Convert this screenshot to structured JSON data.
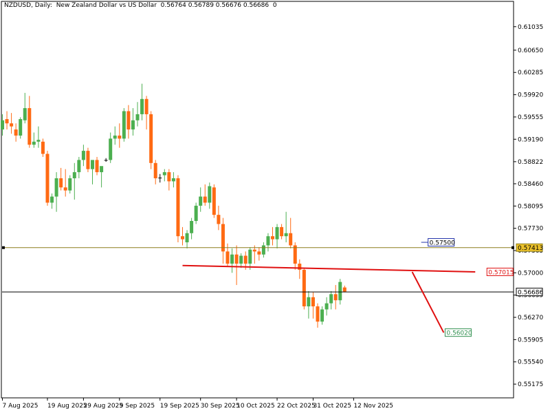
{
  "header": {
    "symbol": "NZDUSD",
    "timeframe": "Daily",
    "description": "New Zealand Dollar vs US Dollar",
    "ohlc": "0.56764 0.56789 0.56676 0.56686",
    "volume": "0"
  },
  "colors": {
    "bull": "#4caf50",
    "bear": "#ff6a13",
    "doji": "#000000",
    "trend": "#e01010",
    "horizontal_line": "#8b7d1a",
    "bid_line": "#000000",
    "label_green": "#2f8f4e"
  },
  "chart_data": {
    "type": "candlestick",
    "symbol": "NZDUSD",
    "timeframe": "Daily",
    "ylim": [
      0.5495,
      0.6145
    ],
    "y_ticks": [
      "0.61035",
      "0.60650",
      "0.60285",
      "0.59920",
      "0.59555",
      "0.59190",
      "0.58822",
      "0.58460",
      "0.58095",
      "0.57730",
      "0.57365",
      "0.57000",
      "0.56635",
      "0.56270",
      "0.55905",
      "0.55540",
      "0.55175"
    ],
    "x_labels": [
      "7 Aug 2025",
      "19 Aug 2025",
      "29 Aug 2025",
      "9 Sep 2025",
      "19 Sep 2025",
      "30 Sep 2025",
      "10 Oct 2025",
      "22 Oct 2025",
      "31 Oct 2025",
      "12 Nov 2025"
    ],
    "x_label_index": [
      0,
      10,
      18,
      26,
      35,
      44,
      52,
      61,
      69,
      78
    ],
    "candles": [
      [
        0.5935,
        0.596,
        0.5925,
        0.595
      ],
      [
        0.5952,
        0.5965,
        0.5935,
        0.5945
      ],
      [
        0.5945,
        0.5962,
        0.5928,
        0.594
      ],
      [
        0.5935,
        0.5945,
        0.5915,
        0.5925
      ],
      [
        0.5925,
        0.5955,
        0.592,
        0.5952
      ],
      [
        0.595,
        0.5995,
        0.5945,
        0.597
      ],
      [
        0.597,
        0.599,
        0.5905,
        0.591
      ],
      [
        0.591,
        0.593,
        0.5905,
        0.5915
      ],
      [
        0.5915,
        0.594,
        0.5905,
        0.5918
      ],
      [
        0.5915,
        0.592,
        0.589,
        0.5895
      ],
      [
        0.5895,
        0.59,
        0.581,
        0.5815
      ],
      [
        0.5815,
        0.583,
        0.5805,
        0.5825
      ],
      [
        0.5825,
        0.5865,
        0.58,
        0.5855
      ],
      [
        0.5855,
        0.5872,
        0.5835,
        0.584
      ],
      [
        0.584,
        0.587,
        0.5825,
        0.5835
      ],
      [
        0.5835,
        0.586,
        0.583,
        0.5855
      ],
      [
        0.5855,
        0.588,
        0.582,
        0.5865
      ],
      [
        0.5865,
        0.589,
        0.5855,
        0.5885
      ],
      [
        0.5885,
        0.591,
        0.5875,
        0.59
      ],
      [
        0.59,
        0.5905,
        0.5865,
        0.587
      ],
      [
        0.587,
        0.588,
        0.5845,
        0.5885
      ],
      [
        0.5885,
        0.589,
        0.586,
        0.5865
      ],
      [
        0.5865,
        0.587,
        0.584,
        0.5875
      ],
      [
        0.5885,
        0.5888,
        0.5882,
        0.5885
      ],
      [
        0.5885,
        0.593,
        0.588,
        0.592
      ],
      [
        0.592,
        0.594,
        0.591,
        0.5925
      ],
      [
        0.5925,
        0.5945,
        0.5905,
        0.592
      ],
      [
        0.592,
        0.597,
        0.5915,
        0.5965
      ],
      [
        0.5965,
        0.5975,
        0.592,
        0.5935
      ],
      [
        0.5935,
        0.597,
        0.5925,
        0.595
      ],
      [
        0.595,
        0.598,
        0.594,
        0.596
      ],
      [
        0.596,
        0.601,
        0.595,
        0.5985
      ],
      [
        0.5985,
        0.599,
        0.5935,
        0.596
      ],
      [
        0.596,
        0.5965,
        0.587,
        0.588
      ],
      [
        0.588,
        0.5885,
        0.5845,
        0.5855
      ],
      [
        0.5855,
        0.5862,
        0.5848,
        0.5856
      ],
      [
        0.586,
        0.587,
        0.585,
        0.5865
      ],
      [
        0.5865,
        0.587,
        0.5835,
        0.585
      ],
      [
        0.585,
        0.5865,
        0.584,
        0.5855
      ],
      [
        0.5855,
        0.586,
        0.575,
        0.576
      ],
      [
        0.576,
        0.5775,
        0.5745,
        0.5755
      ],
      [
        0.575,
        0.577,
        0.574,
        0.5765
      ],
      [
        0.5765,
        0.579,
        0.5755,
        0.5785
      ],
      [
        0.5785,
        0.5815,
        0.578,
        0.581
      ],
      [
        0.581,
        0.584,
        0.58,
        0.5825
      ],
      [
        0.5825,
        0.5845,
        0.581,
        0.5815
      ],
      [
        0.5815,
        0.5848,
        0.5805,
        0.5842
      ],
      [
        0.584,
        0.5845,
        0.579,
        0.5795
      ],
      [
        0.5795,
        0.581,
        0.577,
        0.578
      ],
      [
        0.578,
        0.579,
        0.5715,
        0.5735
      ],
      [
        0.5735,
        0.5748,
        0.571,
        0.5715
      ],
      [
        0.5715,
        0.574,
        0.57,
        0.573
      ],
      [
        0.573,
        0.5745,
        0.568,
        0.5715
      ],
      [
        0.5715,
        0.5732,
        0.5708,
        0.5728
      ],
      [
        0.5728,
        0.5735,
        0.5705,
        0.5715
      ],
      [
        0.5715,
        0.5742,
        0.5705,
        0.5738
      ],
      [
        0.5738,
        0.5745,
        0.5715,
        0.5735
      ],
      [
        0.5735,
        0.5742,
        0.572,
        0.573
      ],
      [
        0.573,
        0.575,
        0.5725,
        0.5745
      ],
      [
        0.5745,
        0.5765,
        0.5735,
        0.576
      ],
      [
        0.576,
        0.5775,
        0.5745,
        0.5755
      ],
      [
        0.5755,
        0.578,
        0.574,
        0.5775
      ],
      [
        0.5775,
        0.578,
        0.5755,
        0.576
      ],
      [
        0.576,
        0.58,
        0.575,
        0.5765
      ],
      [
        0.5765,
        0.579,
        0.574,
        0.5745
      ],
      [
        0.5745,
        0.575,
        0.5705,
        0.5715
      ],
      [
        0.5715,
        0.5722,
        0.569,
        0.5705
      ],
      [
        0.5705,
        0.5708,
        0.564,
        0.5645
      ],
      [
        0.5645,
        0.567,
        0.5625,
        0.566
      ],
      [
        0.566,
        0.5668,
        0.5625,
        0.5645
      ],
      [
        0.5645,
        0.565,
        0.561,
        0.562
      ],
      [
        0.562,
        0.5645,
        0.5615,
        0.564
      ],
      [
        0.564,
        0.566,
        0.563,
        0.565
      ],
      [
        0.565,
        0.567,
        0.564,
        0.5665
      ],
      [
        0.5665,
        0.568,
        0.564,
        0.5655
      ],
      [
        0.5655,
        0.569,
        0.5648,
        0.5685
      ],
      [
        0.5676,
        0.5679,
        0.5668,
        0.5669
      ]
    ],
    "x_step": 6.55,
    "horizontal_line": {
      "price": 0.57413,
      "label": "0.57413"
    },
    "price_line": {
      "price": 0.56686,
      "label": "0.56686"
    },
    "trendline": {
      "start_index": 40,
      "end_index": 105,
      "start_price": 0.5712,
      "end_price": 0.57015,
      "label": "0.57015"
    },
    "projection": {
      "start_index": 91,
      "start_price": 0.57015,
      "end_index": 98,
      "end_price": 0.5602,
      "label": "0.56020"
    },
    "callout": {
      "price": 0.575,
      "label": "0.57500",
      "index": 93
    }
  }
}
